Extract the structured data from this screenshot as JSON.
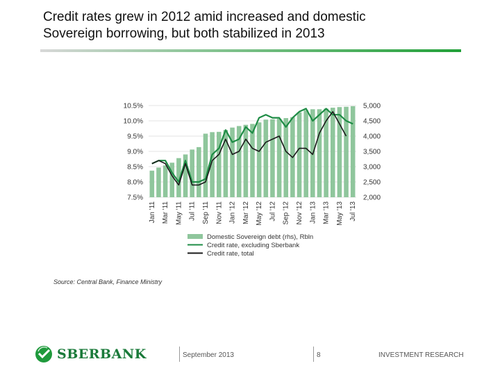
{
  "header": {
    "title_line1": "Credit rates grew in 2012 amid increased and domestic",
    "title_line2": "Sovereign borrowing, but both stabilized in 2013"
  },
  "chart_data": {
    "type": "bar+line",
    "categories": [
      "Jan '11",
      "Feb '11",
      "Mar '11",
      "Apr '11",
      "May '11",
      "Jun '11",
      "Jul '11",
      "Aug '11",
      "Sep '11",
      "Oct '11",
      "Nov '11",
      "Dec '11",
      "Jan '12",
      "Feb '12",
      "Mar '12",
      "Apr '12",
      "May '12",
      "Jun '12",
      "Jul '12",
      "Aug '12",
      "Sep '12",
      "Oct '12",
      "Nov '12",
      "Dec '12",
      "Jan '13",
      "Feb '13",
      "Mar '13",
      "Apr '13",
      "May '13",
      "Jun '13",
      "Jul '13"
    ],
    "tick_labels": [
      "Jan '11",
      "Mar '11",
      "May '11",
      "Jul '11",
      "Sep '11",
      "Nov '11",
      "Jan '12",
      "Mar '12",
      "May '12",
      "Jul '12",
      "Sep '12",
      "Nov '12",
      "Jan '13",
      "Mar '13",
      "May '13",
      "Jul '13"
    ],
    "left_axis": {
      "ticks": [
        "7.5%",
        "8.0%",
        "8.5%",
        "9.0%",
        "9.5%",
        "10.0%",
        "10.5%"
      ],
      "min": 7.5,
      "max": 10.5
    },
    "right_axis": {
      "ticks": [
        "2,000",
        "2,500",
        "3,000",
        "3,500",
        "4,000",
        "4,500",
        "5,000"
      ],
      "min": 2000,
      "max": 5000
    },
    "series": [
      {
        "name": "Domestic Sovereign debt (rhs), Rbln",
        "type": "bar",
        "axis": "right",
        "color": "#8fc69c",
        "values": [
          2870,
          2970,
          3040,
          3130,
          3280,
          3400,
          3560,
          3640,
          4080,
          4130,
          4140,
          4200,
          4280,
          4330,
          4370,
          4400,
          4450,
          4540,
          4550,
          4570,
          4590,
          4620,
          4780,
          4850,
          4880,
          4880,
          4900,
          4930,
          4950,
          4960,
          4980
        ]
      },
      {
        "name": "Credit rate, excluding Sberbank",
        "type": "line",
        "axis": "left",
        "color": "#1e8c45",
        "values": [
          8.6,
          8.7,
          8.7,
          8.3,
          8.0,
          8.7,
          8.0,
          8.0,
          8.1,
          8.9,
          9.1,
          9.7,
          9.3,
          9.4,
          9.8,
          9.6,
          10.1,
          10.2,
          10.1,
          10.1,
          9.8,
          10.1,
          10.3,
          10.4,
          10.0,
          10.2,
          10.4,
          10.2,
          10.2,
          10.0,
          9.9
        ]
      },
      {
        "name": "Credit rate, total",
        "type": "line",
        "axis": "left",
        "color": "#1a1a1a",
        "values": [
          8.6,
          8.7,
          8.6,
          8.2,
          7.9,
          8.6,
          7.9,
          7.9,
          8.0,
          8.7,
          8.9,
          9.4,
          8.9,
          9.0,
          9.4,
          9.1,
          9.0,
          9.3,
          9.4,
          9.5,
          9.0,
          8.8,
          9.1,
          9.1,
          8.9,
          9.6,
          10.0,
          10.3,
          9.9,
          9.5,
          null
        ]
      }
    ],
    "legend_position": "bottom"
  },
  "source": "Source: Central Bank, Finance Ministry",
  "footer": {
    "logo_text": "SBERBANK",
    "date": "September 2013",
    "page_number": "8",
    "department": "INVESTMENT RESEARCH"
  }
}
